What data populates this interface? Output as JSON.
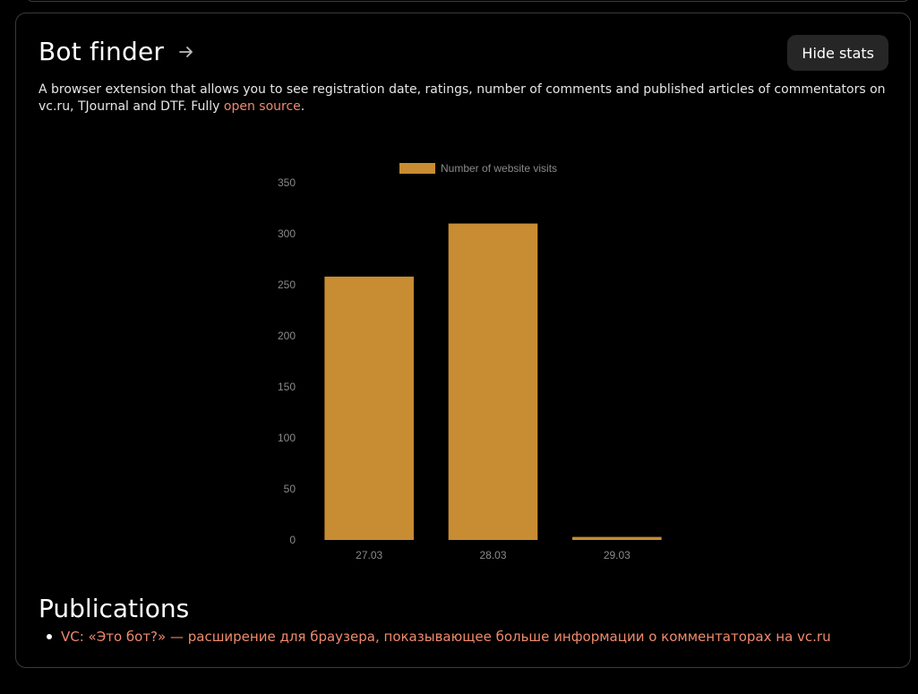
{
  "header": {
    "title": "Bot finder",
    "hide_stats_label": "Hide stats"
  },
  "description": {
    "text": "A browser extension that allows you to see registration date, ratings, number of comments and published articles of commentators on vc.ru, TJournal and DTF. Fully ",
    "link_label": "open source",
    "suffix": "."
  },
  "colors": {
    "bar": "#c88c32",
    "link": "#f08a6c",
    "axis_text": "#8a8a8a"
  },
  "chart_data": {
    "type": "bar",
    "categories": [
      "27.03",
      "28.03",
      "29.03"
    ],
    "series": [
      {
        "name": "Number of website visits",
        "values": [
          258,
          310,
          3
        ]
      }
    ],
    "ylim": [
      0,
      350
    ],
    "yticks": [
      0,
      50,
      100,
      150,
      200,
      250,
      300,
      350
    ],
    "legend": "top",
    "grid": false
  },
  "publications": {
    "title": "Publications",
    "items": [
      {
        "label": "VC: «Это бот?» — расширение для браузера, показывающее больше информации о комментаторах на vc.ru"
      }
    ]
  }
}
